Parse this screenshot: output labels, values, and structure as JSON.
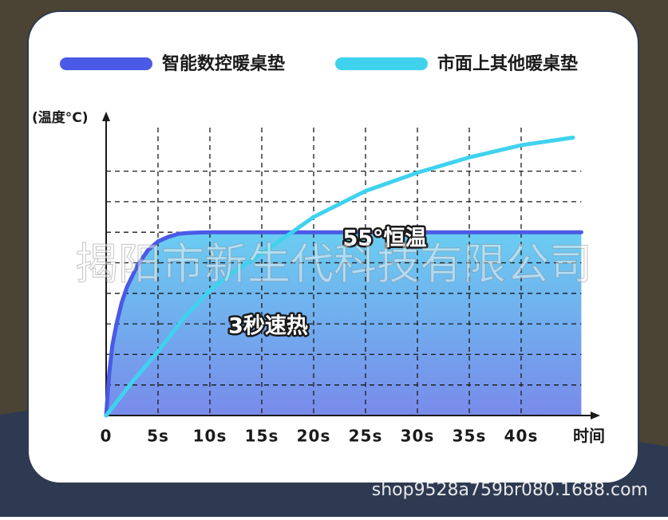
{
  "chart_data": {
    "type": "line",
    "ylabel": "(温度°C)",
    "xlabel": "时间",
    "annotations": [
      "55°恒温",
      "3秒速热"
    ],
    "watermark": "揭阳市新生代科技有限公司",
    "footer": "shop9528a759br080.1688.com",
    "xlim": [
      0,
      47
    ],
    "ylim": [
      0,
      10
    ],
    "xticks": [
      0,
      {
        "value": 5,
        "label": "5s"
      },
      {
        "value": 10,
        "label": "10s"
      },
      {
        "value": 15,
        "label": "15s"
      },
      {
        "value": 20,
        "label": "20s"
      },
      {
        "value": 25,
        "label": "25s"
      },
      {
        "value": 30,
        "label": "30s"
      },
      {
        "value": 35,
        "label": "35s"
      },
      {
        "value": 40,
        "label": "40s"
      }
    ],
    "ygrid": [
      1,
      2,
      3,
      4,
      5,
      6,
      7,
      8
    ],
    "grid": true,
    "series": [
      {
        "name": "智能数控暖桌垫",
        "color": "#4a5ae6",
        "fill": true,
        "x": [
          0,
          0.3,
          0.6,
          1,
          1.5,
          2,
          3,
          4,
          5,
          6,
          7,
          8,
          10,
          15,
          20,
          25,
          30,
          35,
          40,
          45.8
        ],
        "values": [
          0,
          1.4,
          2.3,
          3.0,
          3.7,
          4.2,
          4.9,
          5.4,
          5.7,
          5.85,
          5.95,
          5.98,
          6,
          6,
          6,
          6,
          6,
          6,
          6,
          6
        ]
      },
      {
        "name": "市面上其他暖桌垫",
        "color": "#3fd2ef",
        "fill": false,
        "x": [
          0,
          2.5,
          5,
          7.5,
          10,
          12.5,
          15,
          17.5,
          20,
          25,
          30,
          35,
          40,
          45
        ],
        "values": [
          0,
          1.1,
          2.1,
          3.2,
          4.1,
          4.75,
          5.3,
          5.9,
          6.5,
          7.35,
          7.95,
          8.45,
          8.85,
          9.1
        ]
      }
    ]
  }
}
